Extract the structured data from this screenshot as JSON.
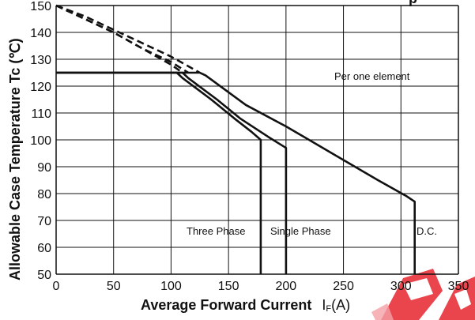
{
  "chart_data": {
    "type": "line",
    "title_fragment": "p",
    "xlabel": "Average Forward Current",
    "xlabel_symbol": "I",
    "xlabel_subscript": "F",
    "xlabel_unit": "(A)",
    "ylabel": "Allowable Case Temperature Tc (℃)",
    "xlim": [
      0,
      350
    ],
    "ylim": [
      50,
      150
    ],
    "xticks": [
      "0",
      "50",
      "100",
      "150",
      "200",
      "250",
      "300",
      "350"
    ],
    "yticks": [
      "50",
      "60",
      "70",
      "80",
      "90",
      "100",
      "110",
      "120",
      "130",
      "140",
      "150"
    ],
    "grid": true,
    "annotations": {
      "per_one_element": "Per one element",
      "three_phase": "Three Phase",
      "single_phase": "Single Phase",
      "dc": "D.C."
    },
    "series": [
      {
        "name": "D.C.",
        "dashed": false,
        "x": [
          0,
          125,
          130,
          165,
          200,
          240,
          280,
          305,
          312,
          312
        ],
        "y": [
          125,
          125,
          124,
          113,
          105,
          95,
          85,
          79,
          77,
          50
        ]
      },
      {
        "name": "Single Phase",
        "dashed": false,
        "x": [
          0,
          110,
          115,
          140,
          160,
          185,
          200,
          200
        ],
        "y": [
          125,
          125,
          123,
          115,
          108,
          101,
          97,
          50
        ]
      },
      {
        "name": "Three Phase",
        "dashed": false,
        "x": [
          0,
          105,
          110,
          135,
          155,
          170,
          178,
          178
        ],
        "y": [
          125,
          125,
          123,
          115,
          108,
          103,
          100,
          50
        ]
      },
      {
        "name": "",
        "dashed": true,
        "x": [
          0,
          25,
          50,
          75,
          100,
          125
        ],
        "y": [
          150,
          146,
          141,
          136,
          131,
          125
        ]
      },
      {
        "name": "",
        "dashed": true,
        "x": [
          0,
          25,
          50,
          75,
          100,
          115
        ],
        "y": [
          150,
          145,
          140,
          134,
          129,
          125
        ]
      },
      {
        "name": "",
        "dashed": true,
        "x": [
          0,
          25,
          50,
          75,
          100,
          110
        ],
        "y": [
          150,
          145,
          140,
          134,
          128,
          125
        ]
      }
    ]
  },
  "colors": {
    "line": "#111111",
    "grid": "#111111",
    "watermark": "#e8303a"
  },
  "watermark_icon": "red-logo-watermark"
}
